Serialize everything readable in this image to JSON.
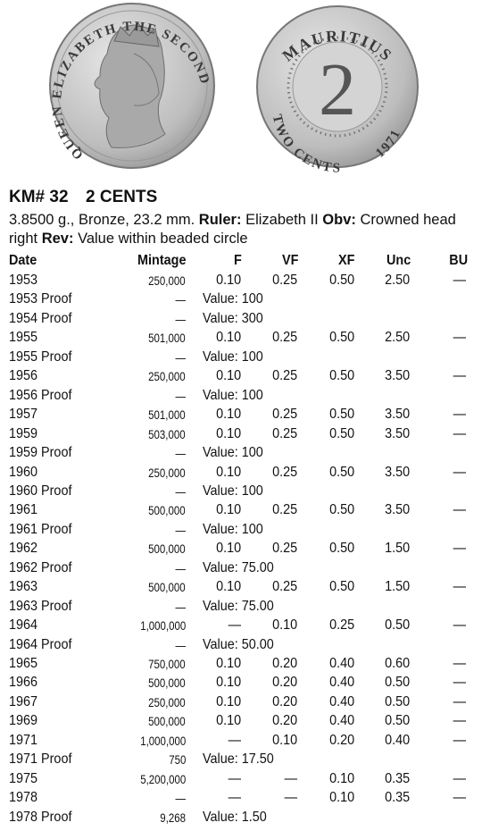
{
  "coins": {
    "obverse_legend": "QUEEN ELIZABETH THE SECOND",
    "reverse_top": "MAURITIUS",
    "reverse_denomination": "2",
    "reverse_bottom": "TWO CENTS",
    "reverse_year": "1971"
  },
  "header": {
    "catalog_number": "KM# 32",
    "denomination": "2 CENTS"
  },
  "description": {
    "specs": "3.8500 g., Bronze, 23.2 mm.",
    "ruler_label": "Ruler:",
    "ruler": "Elizabeth II",
    "obverse_label": "Obv:",
    "obverse": "Crowned head right",
    "reverse_label": "Rev:",
    "reverse": "Value within beaded circle"
  },
  "table": {
    "columns": [
      "Date",
      "Mintage",
      "F",
      "VF",
      "XF",
      "Unc",
      "BU"
    ],
    "rows": [
      [
        "1953",
        "250,000",
        "0.10",
        "0.25",
        "0.50",
        "2.50",
        "—"
      ],
      [
        "1953 Proof",
        "—",
        "Value: 100"
      ],
      [
        "1954 Proof",
        "—",
        "Value: 300"
      ],
      [
        "1955",
        "501,000",
        "0.10",
        "0.25",
        "0.50",
        "2.50",
        "—"
      ],
      [
        "1955 Proof",
        "—",
        "Value: 100"
      ],
      [
        "1956",
        "250,000",
        "0.10",
        "0.25",
        "0.50",
        "3.50",
        "—"
      ],
      [
        "1956 Proof",
        "—",
        "Value: 100"
      ],
      [
        "1957",
        "501,000",
        "0.10",
        "0.25",
        "0.50",
        "3.50",
        "—"
      ],
      [
        "1959",
        "503,000",
        "0.10",
        "0.25",
        "0.50",
        "3.50",
        "—"
      ],
      [
        "1959 Proof",
        "—",
        "Value: 100"
      ],
      [
        "1960",
        "250,000",
        "0.10",
        "0.25",
        "0.50",
        "3.50",
        "—"
      ],
      [
        "1960 Proof",
        "—",
        "Value: 100"
      ],
      [
        "1961",
        "500,000",
        "0.10",
        "0.25",
        "0.50",
        "3.50",
        "—"
      ],
      [
        "1961 Proof",
        "—",
        "Value: 100"
      ],
      [
        "1962",
        "500,000",
        "0.10",
        "0.25",
        "0.50",
        "1.50",
        "—"
      ],
      [
        "1962 Proof",
        "—",
        "Value: 75.00"
      ],
      [
        "1963",
        "500,000",
        "0.10",
        "0.25",
        "0.50",
        "1.50",
        "—"
      ],
      [
        "1963 Proof",
        "—",
        "Value: 75.00"
      ],
      [
        "1964",
        "1,000,000",
        "—",
        "0.10",
        "0.25",
        "0.50",
        "—"
      ],
      [
        "1964 Proof",
        "—",
        "Value: 50.00"
      ],
      [
        "1965",
        "750,000",
        "0.10",
        "0.20",
        "0.40",
        "0.60",
        "—"
      ],
      [
        "1966",
        "500,000",
        "0.10",
        "0.20",
        "0.40",
        "0.50",
        "—"
      ],
      [
        "1967",
        "250,000",
        "0.10",
        "0.20",
        "0.40",
        "0.50",
        "—"
      ],
      [
        "1969",
        "500,000",
        "0.10",
        "0.20",
        "0.40",
        "0.50",
        "—"
      ],
      [
        "1971",
        "1,000,000",
        "—",
        "0.10",
        "0.20",
        "0.40",
        "—"
      ],
      [
        "1971 Proof",
        "750",
        "Value: 17.50"
      ],
      [
        "1975",
        "5,200,000",
        "—",
        "—",
        "0.10",
        "0.35",
        "—"
      ],
      [
        "1978",
        "—",
        "—",
        "—",
        "0.10",
        "0.35",
        "—"
      ],
      [
        "1978 Proof",
        "9,268",
        "Value: 1.50"
      ]
    ]
  }
}
